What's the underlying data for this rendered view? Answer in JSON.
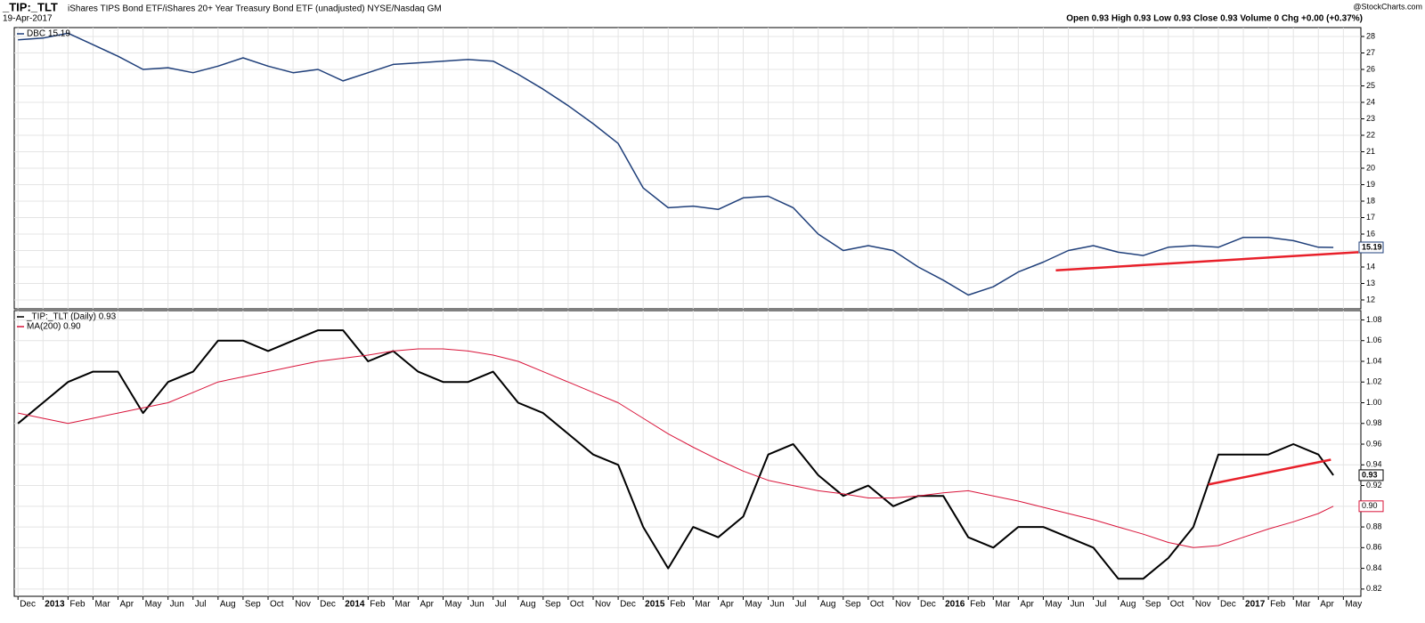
{
  "header": {
    "symbol": "_TIP:_TLT",
    "description": "iShares TIPS Bond ETF/iShares 20+ Year Treasury Bond ETF (unadjusted) NYSE/Nasdaq GM",
    "date": "19-Apr-2017",
    "brand": "@StockCharts.com",
    "quote": "Open 0.93 High 0.93 Low 0.93 Close 0.93 Volume 0 Chg +0.00 (+0.37%)"
  },
  "chart_data": [
    {
      "type": "line",
      "grid": true,
      "x": [
        0,
        1,
        2,
        3,
        4,
        5,
        6,
        7,
        8,
        9,
        10,
        11,
        12,
        13,
        14,
        15,
        16,
        17,
        18,
        19,
        20,
        21,
        22,
        23,
        24,
        25,
        26,
        27,
        28,
        29,
        30,
        31,
        32,
        33,
        34,
        35,
        36,
        37,
        38,
        39,
        40,
        41,
        42,
        43,
        44,
        45,
        46,
        47,
        48,
        49,
        50,
        51,
        52,
        52.6
      ],
      "xlim": [
        -0.15,
        53.7
      ],
      "ylim": [
        11.46,
        28.54
      ],
      "yticks": [
        12,
        13,
        14,
        15,
        16,
        17,
        18,
        19,
        20,
        21,
        22,
        23,
        24,
        25,
        26,
        27,
        28
      ],
      "series": [
        {
          "name": "DBC 15.19",
          "color": "#1f3f7a",
          "last_label": "15.19",
          "values": [
            27.8,
            27.9,
            28.2,
            27.5,
            26.8,
            26.0,
            26.1,
            25.8,
            26.2,
            26.7,
            26.2,
            25.8,
            26.0,
            25.3,
            25.8,
            26.3,
            26.4,
            26.5,
            26.6,
            26.5,
            25.7,
            24.8,
            23.8,
            22.7,
            21.5,
            18.8,
            17.6,
            17.7,
            17.5,
            18.2,
            18.3,
            17.6,
            16.0,
            15.0,
            15.3,
            15.0,
            14.0,
            13.2,
            12.3,
            12.8,
            13.7,
            14.3,
            15.0,
            15.3,
            14.9,
            14.7,
            15.2,
            15.3,
            15.2,
            15.8,
            15.8,
            15.6,
            15.2,
            15.19
          ]
        }
      ],
      "trendlines": [
        {
          "color": "#e8202a",
          "x": [
            41.5,
            53.6
          ],
          "y": [
            13.8,
            14.9
          ]
        }
      ]
    },
    {
      "type": "line",
      "grid": true,
      "x": [
        0,
        1,
        2,
        3,
        4,
        5,
        6,
        7,
        8,
        9,
        10,
        11,
        12,
        13,
        14,
        15,
        16,
        17,
        18,
        19,
        20,
        21,
        22,
        23,
        24,
        25,
        26,
        27,
        28,
        29,
        30,
        31,
        32,
        33,
        34,
        35,
        36,
        37,
        38,
        39,
        40,
        41,
        42,
        43,
        44,
        45,
        46,
        47,
        48,
        49,
        50,
        51,
        52,
        52.6
      ],
      "xlim": [
        -0.15,
        53.7
      ],
      "ylim": [
        0.813,
        1.089
      ],
      "yticks": [
        0.82,
        0.84,
        0.86,
        0.88,
        {
          "value": 0.9,
          "label": "0.90"
        },
        0.92,
        0.94,
        0.96,
        0.98,
        {
          "value": 1,
          "label": "1.00"
        },
        1.02,
        1.04,
        1.06,
        1.08
      ],
      "xticks": [
        {
          "value": 0,
          "label": "Dec"
        },
        {
          "value": 1,
          "label": "2013"
        },
        {
          "value": 2,
          "label": "Feb"
        },
        {
          "value": 3,
          "label": "Mar"
        },
        {
          "value": 4,
          "label": "Apr"
        },
        {
          "value": 5,
          "label": "May"
        },
        {
          "value": 6,
          "label": "Jun"
        },
        {
          "value": 7,
          "label": "Jul"
        },
        {
          "value": 8,
          "label": "Aug"
        },
        {
          "value": 9,
          "label": "Sep"
        },
        {
          "value": 10,
          "label": "Oct"
        },
        {
          "value": 11,
          "label": "Nov"
        },
        {
          "value": 12,
          "label": "Dec"
        },
        {
          "value": 13,
          "label": "2014"
        },
        {
          "value": 14,
          "label": "Feb"
        },
        {
          "value": 15,
          "label": "Mar"
        },
        {
          "value": 16,
          "label": "Apr"
        },
        {
          "value": 17,
          "label": "May"
        },
        {
          "value": 18,
          "label": "Jun"
        },
        {
          "value": 19,
          "label": "Jul"
        },
        {
          "value": 20,
          "label": "Aug"
        },
        {
          "value": 21,
          "label": "Sep"
        },
        {
          "value": 22,
          "label": "Oct"
        },
        {
          "value": 23,
          "label": "Nov"
        },
        {
          "value": 24,
          "label": "Dec"
        },
        {
          "value": 25,
          "label": "2015"
        },
        {
          "value": 26,
          "label": "Feb"
        },
        {
          "value": 27,
          "label": "Mar"
        },
        {
          "value": 28,
          "label": "Apr"
        },
        {
          "value": 29,
          "label": "May"
        },
        {
          "value": 30,
          "label": "Jun"
        },
        {
          "value": 31,
          "label": "Jul"
        },
        {
          "value": 32,
          "label": "Aug"
        },
        {
          "value": 33,
          "label": "Sep"
        },
        {
          "value": 34,
          "label": "Oct"
        },
        {
          "value": 35,
          "label": "Nov"
        },
        {
          "value": 36,
          "label": "Dec"
        },
        {
          "value": 37,
          "label": "2016"
        },
        {
          "value": 38,
          "label": "Feb"
        },
        {
          "value": 39,
          "label": "Mar"
        },
        {
          "value": 40,
          "label": "Apr"
        },
        {
          "value": 41,
          "label": "May"
        },
        {
          "value": 42,
          "label": "Jun"
        },
        {
          "value": 43,
          "label": "Jul"
        },
        {
          "value": 44,
          "label": "Aug"
        },
        {
          "value": 45,
          "label": "Sep"
        },
        {
          "value": 46,
          "label": "Oct"
        },
        {
          "value": 47,
          "label": "Nov"
        },
        {
          "value": 48,
          "label": "Dec"
        },
        {
          "value": 49,
          "label": "2017"
        },
        {
          "value": 50,
          "label": "Feb"
        },
        {
          "value": 51,
          "label": "Mar"
        },
        {
          "value": 52,
          "label": "Apr"
        },
        {
          "value": 53,
          "label": "May"
        }
      ],
      "series": [
        {
          "name": "_TIP:_TLT (Daily) 0.93",
          "color": "#000000",
          "width": 2,
          "last_label": "0.93",
          "values": [
            0.98,
            1.0,
            1.02,
            1.03,
            1.03,
            0.99,
            1.02,
            1.03,
            1.06,
            1.06,
            1.05,
            1.06,
            1.07,
            1.07,
            1.04,
            1.05,
            1.03,
            1.02,
            1.02,
            1.03,
            1.0,
            0.99,
            0.97,
            0.95,
            0.94,
            0.88,
            0.84,
            0.88,
            0.87,
            0.89,
            0.95,
            0.96,
            0.93,
            0.91,
            0.92,
            0.9,
            0.91,
            0.91,
            0.87,
            0.86,
            0.88,
            0.88,
            0.87,
            0.86,
            0.83,
            0.83,
            0.85,
            0.88,
            0.95,
            0.95,
            0.95,
            0.96,
            0.95,
            0.93
          ]
        },
        {
          "name": "MA(200) 0.90",
          "color": "#d9143a",
          "width": 1,
          "last_label": "0.90",
          "values": [
            0.99,
            0.985,
            0.98,
            0.985,
            0.99,
            0.995,
            1.0,
            1.01,
            1.02,
            1.025,
            1.03,
            1.035,
            1.04,
            1.043,
            1.046,
            1.05,
            1.052,
            1.052,
            1.05,
            1.046,
            1.04,
            1.03,
            1.02,
            1.01,
            1.0,
            0.985,
            0.97,
            0.957,
            0.945,
            0.934,
            0.925,
            0.92,
            0.915,
            0.912,
            0.908,
            0.908,
            0.91,
            0.913,
            0.915,
            0.91,
            0.905,
            0.899,
            0.893,
            0.887,
            0.88,
            0.873,
            0.865,
            0.86,
            0.862,
            0.87,
            0.878,
            0.885,
            0.893,
            0.9
          ]
        }
      ],
      "trendlines": [
        {
          "color": "#e8202a",
          "x": [
            47.6,
            52.5
          ],
          "y": [
            0.921,
            0.945
          ]
        }
      ]
    }
  ]
}
